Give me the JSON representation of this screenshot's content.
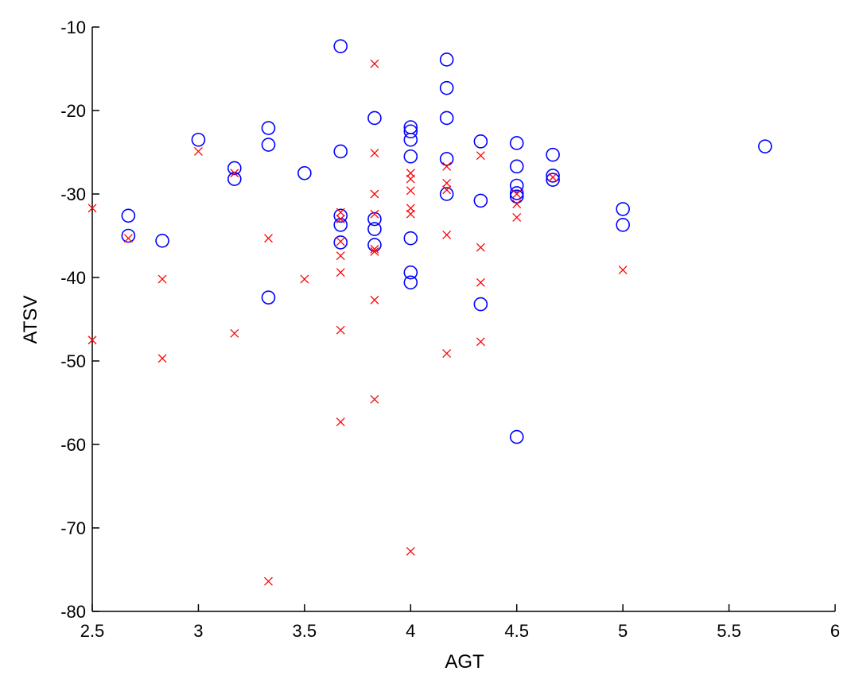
{
  "chart_data": {
    "type": "scatter",
    "xlabel": "AGT",
    "ylabel": "ATSV",
    "xlim": [
      2.5,
      6
    ],
    "ylim": [
      -80,
      -10
    ],
    "xticks": [
      2.5,
      3,
      3.5,
      4,
      4.5,
      5,
      5.5,
      6
    ],
    "yticks": [
      -10,
      -20,
      -30,
      -40,
      -50,
      -60,
      -70,
      -80
    ],
    "xtick_labels": [
      "2.5",
      "3",
      "3.5",
      "4",
      "4.5",
      "5",
      "5.5",
      "6"
    ],
    "ytick_labels": [
      "-10",
      "-20",
      "-30",
      "-40",
      "-50",
      "-60",
      "-70",
      "-80"
    ],
    "grid": false,
    "series": [
      {
        "marker": "circle",
        "color": "#0000ff",
        "points": [
          [
            2.67,
            -32.6
          ],
          [
            2.67,
            -35.0
          ],
          [
            2.83,
            -35.6
          ],
          [
            3.0,
            -23.5
          ],
          [
            3.17,
            -26.9
          ],
          [
            3.17,
            -28.2
          ],
          [
            3.33,
            -22.1
          ],
          [
            3.33,
            -24.1
          ],
          [
            3.33,
            -42.4
          ],
          [
            3.5,
            -27.5
          ],
          [
            3.67,
            -12.3
          ],
          [
            3.67,
            -24.9
          ],
          [
            3.67,
            -32.6
          ],
          [
            3.67,
            -33.7
          ],
          [
            3.67,
            -35.8
          ],
          [
            3.83,
            -20.9
          ],
          [
            3.83,
            -33.0
          ],
          [
            3.83,
            -34.2
          ],
          [
            3.83,
            -36.1
          ],
          [
            4.0,
            -22.0
          ],
          [
            4.0,
            -22.5
          ],
          [
            4.0,
            -23.5
          ],
          [
            4.0,
            -25.5
          ],
          [
            4.0,
            -35.3
          ],
          [
            4.0,
            -39.4
          ],
          [
            4.0,
            -40.6
          ],
          [
            4.17,
            -13.9
          ],
          [
            4.17,
            -17.3
          ],
          [
            4.17,
            -20.9
          ],
          [
            4.17,
            -25.8
          ],
          [
            4.17,
            -30.0
          ],
          [
            4.33,
            -23.7
          ],
          [
            4.33,
            -30.8
          ],
          [
            4.33,
            -43.2
          ],
          [
            4.5,
            -23.9
          ],
          [
            4.5,
            -26.7
          ],
          [
            4.5,
            -29.0
          ],
          [
            4.5,
            -29.9
          ],
          [
            4.5,
            -30.3
          ],
          [
            4.5,
            -59.1
          ],
          [
            4.67,
            -25.3
          ],
          [
            4.67,
            -27.8
          ],
          [
            4.67,
            -28.3
          ],
          [
            5.0,
            -31.8
          ],
          [
            5.0,
            -33.7
          ],
          [
            5.67,
            -24.3
          ]
        ]
      },
      {
        "marker": "x",
        "color": "#ff0000",
        "points": [
          [
            2.5,
            -31.7
          ],
          [
            2.5,
            -47.5
          ],
          [
            2.67,
            -35.3
          ],
          [
            2.83,
            -40.2
          ],
          [
            2.83,
            -49.7
          ],
          [
            3.0,
            -24.9
          ],
          [
            3.17,
            -27.5
          ],
          [
            3.17,
            -46.7
          ],
          [
            3.33,
            -35.3
          ],
          [
            3.33,
            -76.4
          ],
          [
            3.5,
            -40.2
          ],
          [
            3.67,
            -32.2
          ],
          [
            3.67,
            -33.0
          ],
          [
            3.67,
            -35.7
          ],
          [
            3.67,
            -37.4
          ],
          [
            3.67,
            -39.4
          ],
          [
            3.67,
            -46.3
          ],
          [
            3.67,
            -57.3
          ],
          [
            3.83,
            -14.4
          ],
          [
            3.83,
            -25.1
          ],
          [
            3.83,
            -30.0
          ],
          [
            3.83,
            -32.4
          ],
          [
            3.83,
            -36.6
          ],
          [
            3.83,
            -36.9
          ],
          [
            3.83,
            -42.7
          ],
          [
            3.83,
            -54.6
          ],
          [
            4.0,
            -27.5
          ],
          [
            4.0,
            -28.2
          ],
          [
            4.0,
            -29.6
          ],
          [
            4.0,
            -31.7
          ],
          [
            4.0,
            -32.4
          ],
          [
            4.0,
            -72.8
          ],
          [
            4.17,
            -26.7
          ],
          [
            4.17,
            -28.7
          ],
          [
            4.17,
            -29.5
          ],
          [
            4.17,
            -34.9
          ],
          [
            4.17,
            -49.1
          ],
          [
            4.33,
            -25.4
          ],
          [
            4.33,
            -36.4
          ],
          [
            4.33,
            -40.6
          ],
          [
            4.33,
            -47.7
          ],
          [
            4.5,
            -30.0
          ],
          [
            4.5,
            -31.2
          ],
          [
            4.5,
            -32.8
          ],
          [
            4.67,
            -28.0
          ],
          [
            5.0,
            -39.1
          ]
        ]
      }
    ]
  }
}
